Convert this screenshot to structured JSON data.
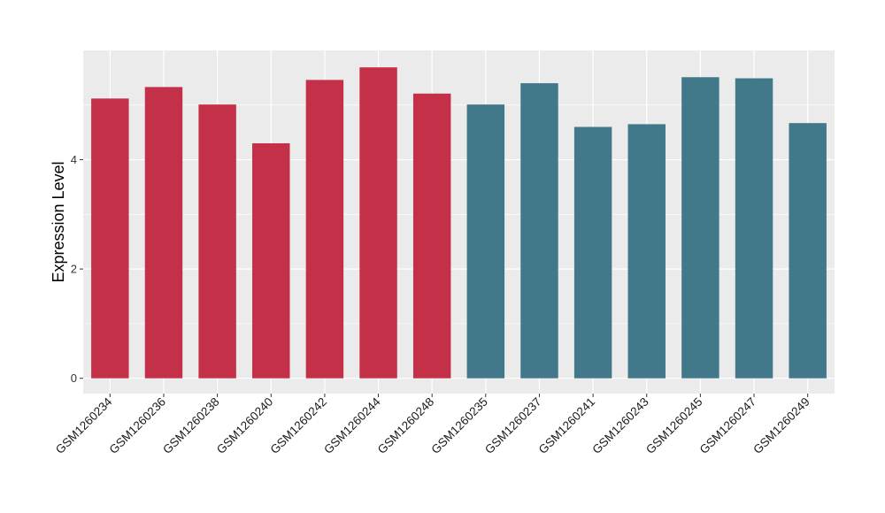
{
  "chart_data": {
    "type": "bar",
    "title": "",
    "xlabel": "",
    "ylabel": "Expression Level",
    "categories": [
      "GSM1260234",
      "GSM1260236",
      "GSM1260238",
      "GSM1260240",
      "GSM1260242",
      "GSM1260244",
      "GSM1260248",
      "GSM1260235",
      "GSM1260237",
      "GSM1260241",
      "GSM1260243",
      "GSM1260245",
      "GSM1260247",
      "GSM1260249"
    ],
    "values": [
      5.12,
      5.33,
      5.01,
      4.3,
      5.46,
      5.69,
      5.21,
      5.01,
      5.4,
      4.6,
      4.65,
      5.51,
      5.49,
      4.67
    ],
    "groups": [
      "group1",
      "group1",
      "group1",
      "group1",
      "group1",
      "group1",
      "group1",
      "group2",
      "group2",
      "group2",
      "group2",
      "group2",
      "group2",
      "group2"
    ],
    "group_colors": {
      "group1": "#c33048",
      "group2": "#41798a"
    },
    "ylim": [
      -0.28,
      6.0
    ],
    "yticks": [
      0,
      2,
      4
    ],
    "ytick_labels": [
      "0",
      "2",
      "4"
    ],
    "grid": true,
    "panel_background": "#ebebeb",
    "grid_color": "#ffffff"
  }
}
